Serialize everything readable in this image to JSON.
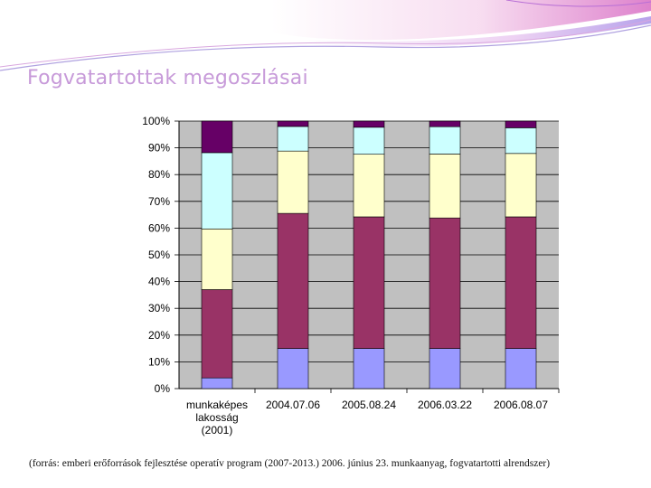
{
  "slide": {
    "title": "Fogvatartottak megoszlásai",
    "source": "(forrás: emberi erőforrások fejlesztése operatív program (2007-2013.) 2006. június 23. munkaanyag, fogvatartotti alrendszer)"
  },
  "colors": {
    "plot_bg": "#c0c0c0",
    "grid": "#000000",
    "title": "#c79ad9"
  },
  "chart_data": {
    "type": "bar",
    "stacked": true,
    "categories": [
      [
        "munkaképes",
        "lakosság",
        "(2001)"
      ],
      [
        "2004.07.06"
      ],
      [
        "2005.08.24"
      ],
      [
        "2006.03.22"
      ],
      [
        "2006.08.07"
      ]
    ],
    "ylim": [
      0,
      100
    ],
    "yticks": [
      "0%",
      "10%",
      "20%",
      "30%",
      "40%",
      "50%",
      "60%",
      "70%",
      "80%",
      "90%",
      "100%"
    ],
    "grid": true,
    "legend": "none",
    "series": [
      {
        "color": "#9999ff",
        "values": [
          4.0,
          15.0,
          15.0,
          15.0,
          15.0
        ]
      },
      {
        "color": "#993366",
        "values": [
          33.0,
          50.5,
          49.2,
          48.8,
          49.2
        ]
      },
      {
        "color": "#ffffcc",
        "values": [
          22.7,
          23.3,
          23.4,
          23.9,
          23.7
        ]
      },
      {
        "color": "#ccffff",
        "values": [
          28.5,
          9.2,
          10.1,
          10.2,
          9.6
        ]
      },
      {
        "color": "#660066",
        "values": [
          11.8,
          2.0,
          2.3,
          2.1,
          2.5
        ]
      }
    ]
  }
}
